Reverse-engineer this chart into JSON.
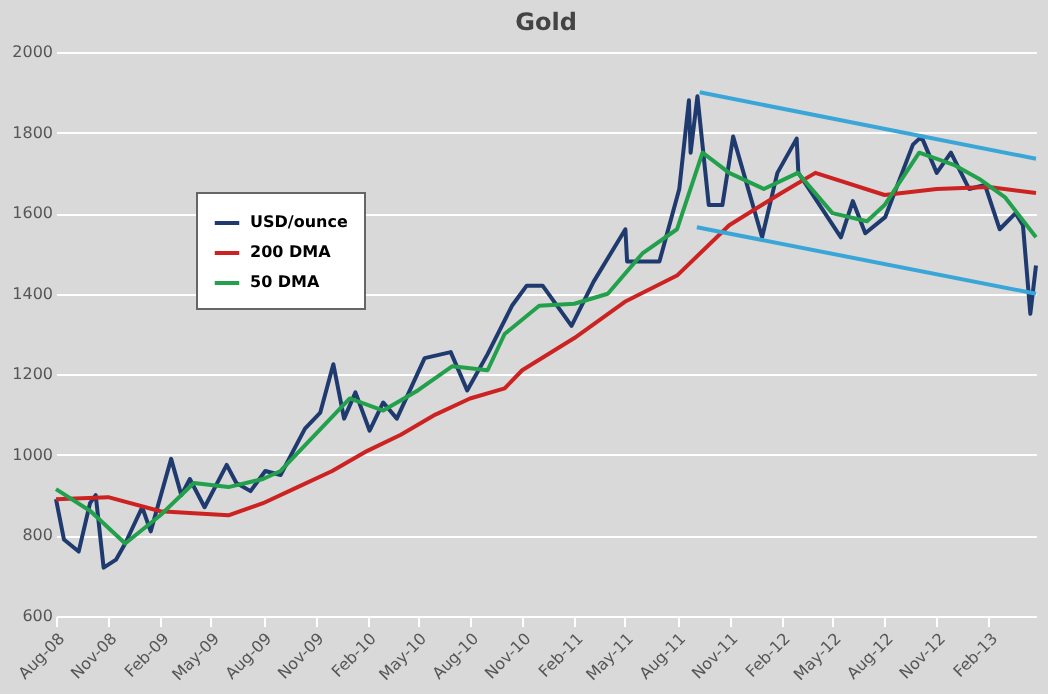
{
  "chart_data": {
    "type": "line",
    "title": "Gold",
    "xlim": [
      "2008-08-01",
      "2013-04-25"
    ],
    "ylim": [
      600,
      2000
    ],
    "yticks": [
      600,
      800,
      1000,
      1200,
      1400,
      1600,
      1800,
      2000
    ],
    "xticks": [
      {
        "value": "2008-08-01",
        "label": "Aug-08"
      },
      {
        "value": "2008-11-01",
        "label": "Nov-08"
      },
      {
        "value": "2009-02-01",
        "label": "Feb-09"
      },
      {
        "value": "2009-05-01",
        "label": "May-09"
      },
      {
        "value": "2009-08-01",
        "label": "Aug-09"
      },
      {
        "value": "2009-11-01",
        "label": "Nov-09"
      },
      {
        "value": "2010-02-01",
        "label": "Feb-10"
      },
      {
        "value": "2010-05-01",
        "label": "May-10"
      },
      {
        "value": "2010-08-01",
        "label": "Aug-10"
      },
      {
        "value": "2010-11-01",
        "label": "Nov-10"
      },
      {
        "value": "2011-02-01",
        "label": "Feb-11"
      },
      {
        "value": "2011-05-01",
        "label": "May-11"
      },
      {
        "value": "2011-08-01",
        "label": "Aug-11"
      },
      {
        "value": "2011-11-01",
        "label": "Nov-11"
      },
      {
        "value": "2012-02-01",
        "label": "Feb-12"
      },
      {
        "value": "2012-05-01",
        "label": "May-12"
      },
      {
        "value": "2012-08-01",
        "label": "Aug-12"
      },
      {
        "value": "2012-11-01",
        "label": "Nov-12"
      },
      {
        "value": "2013-02-01",
        "label": "Feb-13"
      }
    ],
    "grid": "y",
    "legend": "top left",
    "line_style": "solid",
    "marker": "none",
    "series": [
      {
        "name": "USD/ounce",
        "color": "#1f3a6e",
        "x": [
          "2008-08-01",
          "2008-08-15",
          "2008-09-10",
          "2008-09-30",
          "2008-10-10",
          "2008-10-24",
          "2008-11-15",
          "2008-12-01",
          "2008-12-31",
          "2009-01-15",
          "2009-02-20",
          "2009-03-10",
          "2009-03-25",
          "2009-04-20",
          "2009-05-29",
          "2009-06-15",
          "2009-07-10",
          "2009-08-05",
          "2009-09-01",
          "2009-10-14",
          "2009-11-10",
          "2009-12-03",
          "2009-12-22",
          "2010-01-11",
          "2010-02-05",
          "2010-03-01",
          "2010-03-25",
          "2010-05-13",
          "2010-06-28",
          "2010-07-27",
          "2010-09-01",
          "2010-10-14",
          "2010-11-09",
          "2010-12-07",
          "2011-01-27",
          "2011-03-07",
          "2011-05-02",
          "2011-05-05",
          "2011-07-01",
          "2011-08-05",
          "2011-08-22",
          "2011-08-25",
          "2011-09-06",
          "2011-09-26",
          "2011-10-20",
          "2011-11-08",
          "2011-12-29",
          "2012-01-25",
          "2012-02-28",
          "2012-03-02",
          "2012-05-16",
          "2012-06-06",
          "2012-06-28",
          "2012-08-02",
          "2012-09-20",
          "2012-10-05",
          "2012-11-01",
          "2012-11-26",
          "2012-12-28",
          "2013-01-25",
          "2013-02-20",
          "2013-03-20",
          "2013-04-02",
          "2013-04-15",
          "2013-04-25"
        ],
        "values": [
          890,
          790,
          760,
          880,
          900,
          720,
          740,
          780,
          870,
          810,
          990,
          900,
          940,
          870,
          975,
          930,
          910,
          960,
          950,
          1065,
          1105,
          1225,
          1090,
          1155,
          1060,
          1130,
          1090,
          1240,
          1255,
          1160,
          1250,
          1370,
          1420,
          1420,
          1320,
          1430,
          1560,
          1480,
          1480,
          1660,
          1880,
          1750,
          1890,
          1620,
          1620,
          1790,
          1540,
          1700,
          1785,
          1700,
          1540,
          1630,
          1550,
          1590,
          1770,
          1790,
          1700,
          1750,
          1660,
          1670,
          1560,
          1600,
          1570,
          1350,
          1470
        ]
      },
      {
        "name": "200 DMA",
        "color": "#cc2222",
        "x": [
          "2008-08-01",
          "2008-11-01",
          "2009-02-01",
          "2009-04-01",
          "2009-06-01",
          "2009-08-01",
          "2009-10-01",
          "2009-12-01",
          "2010-02-01",
          "2010-04-01",
          "2010-06-01",
          "2010-08-01",
          "2010-10-01",
          "2010-11-01",
          "2011-02-01",
          "2011-05-01",
          "2011-08-01",
          "2011-11-01",
          "2012-02-01",
          "2012-04-01",
          "2012-08-01",
          "2012-11-01",
          "2013-02-01",
          "2013-04-25"
        ],
        "values": [
          890,
          895,
          860,
          855,
          850,
          880,
          920,
          960,
          1010,
          1050,
          1100,
          1140,
          1165,
          1210,
          1290,
          1380,
          1445,
          1570,
          1650,
          1700,
          1645,
          1660,
          1665,
          1650
        ]
      },
      {
        "name": "50 DMA",
        "color": "#22a04b",
        "x": [
          "2008-08-01",
          "2008-10-01",
          "2008-12-01",
          "2009-02-01",
          "2009-04-01",
          "2009-06-01",
          "2009-08-01",
          "2009-09-01",
          "2009-11-01",
          "2010-01-01",
          "2010-03-01",
          "2010-05-01",
          "2010-07-01",
          "2010-09-01",
          "2010-10-01",
          "2010-12-01",
          "2011-02-01",
          "2011-04-01",
          "2011-06-01",
          "2011-08-01",
          "2011-09-15",
          "2011-11-01",
          "2012-01-01",
          "2012-03-01",
          "2012-05-01",
          "2012-07-01",
          "2012-08-01",
          "2012-10-01",
          "2012-12-01",
          "2013-01-15",
          "2013-03-01",
          "2013-04-25"
        ],
        "values": [
          915,
          860,
          780,
          850,
          930,
          920,
          940,
          960,
          1050,
          1140,
          1110,
          1160,
          1220,
          1210,
          1300,
          1370,
          1375,
          1400,
          1500,
          1560,
          1750,
          1700,
          1660,
          1700,
          1600,
          1580,
          1620,
          1750,
          1720,
          1685,
          1640,
          1540
        ]
      },
      {
        "color": "#3aa6d8",
        "x": [
          "2011-09-10",
          "2013-04-25"
        ],
        "values": [
          1900,
          1735
        ]
      },
      {
        "color": "#3aa6d8",
        "x": [
          "2011-09-05",
          "2013-04-25"
        ],
        "values": [
          1565,
          1400
        ]
      }
    ]
  }
}
